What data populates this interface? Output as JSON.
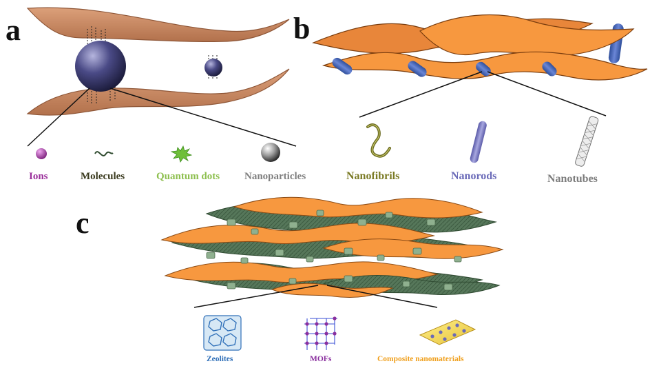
{
  "panels": {
    "a": {
      "letter": "a",
      "items": [
        {
          "label": "Ions",
          "color": "#9b2f9b"
        },
        {
          "label": "Molecules",
          "color": "#3a3a1e"
        },
        {
          "label": "Quantum dots",
          "color": "#8dbf4e"
        },
        {
          "label": "Nanoparticles",
          "color": "#808080"
        }
      ]
    },
    "b": {
      "letter": "b",
      "items": [
        {
          "label": "Nanofibrils",
          "color": "#7a7a24"
        },
        {
          "label": "Nanorods",
          "color": "#6a6ab8"
        },
        {
          "label": "Nanotubes",
          "color": "#7d7d7d"
        }
      ]
    },
    "c": {
      "letter": "c",
      "items": [
        {
          "label": "Zeolites",
          "color": "#2f6fb8"
        },
        {
          "label": "MOFs",
          "color": "#8a2f9e"
        },
        {
          "label": "Composite nanomaterials",
          "color": "#f0a01e"
        }
      ]
    }
  },
  "colors": {
    "sheet_brown": "#c98a63",
    "sheet_orange": "#f7983f",
    "sheet_green": "#56775a",
    "sphere": "#3f3f7a",
    "rod": "#4a67b5"
  }
}
